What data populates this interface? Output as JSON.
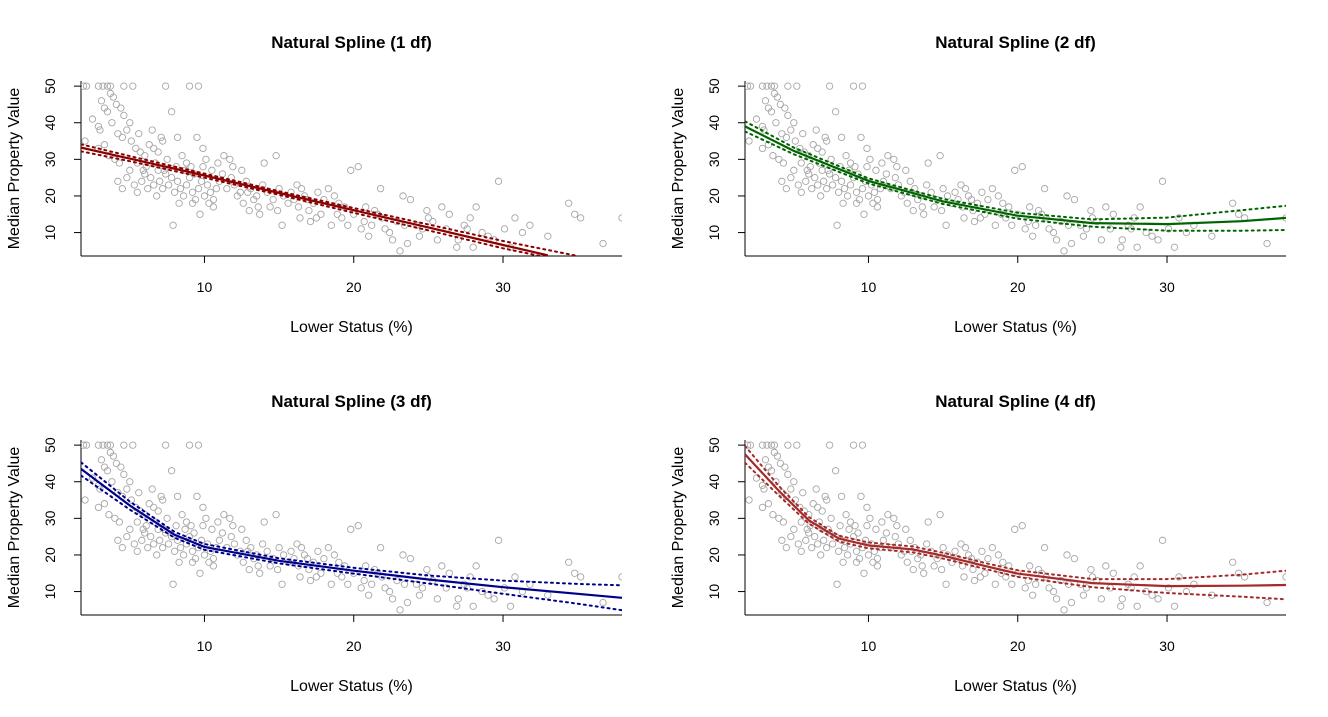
{
  "chart_data": [
    {
      "type": "scatter",
      "title": "Natural Spline (1 df)",
      "xlabel": "Lower Status (%)",
      "ylabel": "Median Property Value",
      "xlim": [
        1.73,
        37.97
      ],
      "ylim": [
        3.6,
        51.4
      ],
      "xticks": [
        10,
        20,
        30
      ],
      "yticks": [
        10,
        20,
        30,
        40,
        50
      ],
      "color": "#8b0000",
      "fit": [
        [
          1.73,
          33.2
        ],
        [
          5,
          30.2
        ],
        [
          10,
          25.6
        ],
        [
          15,
          20.8
        ],
        [
          20,
          16.1
        ],
        [
          25,
          11.4
        ],
        [
          30,
          6.6
        ],
        [
          33,
          3.8
        ]
      ],
      "upper": [
        [
          1.73,
          34.1
        ],
        [
          5,
          30.9
        ],
        [
          10,
          26.1
        ],
        [
          15,
          21.3
        ],
        [
          20,
          16.7
        ],
        [
          25,
          12.2
        ],
        [
          30,
          7.7
        ],
        [
          35,
          3.6
        ]
      ],
      "lower": [
        [
          1.73,
          32.2
        ],
        [
          5,
          29.5
        ],
        [
          10,
          25.0
        ],
        [
          15,
          20.3
        ],
        [
          20,
          15.4
        ],
        [
          25,
          10.6
        ],
        [
          30,
          5.7
        ],
        [
          32.5,
          3.6
        ]
      ]
    },
    {
      "type": "scatter",
      "title": "Natural Spline (2 df)",
      "xlabel": "Lower Status (%)",
      "ylabel": "Median Property Value",
      "xlim": [
        1.73,
        37.97
      ],
      "ylim": [
        3.6,
        51.4
      ],
      "xticks": [
        10,
        20,
        30
      ],
      "yticks": [
        10,
        20,
        30,
        40,
        50
      ],
      "color": "#006400",
      "fit": [
        [
          1.73,
          39.0
        ],
        [
          5,
          32.3
        ],
        [
          10,
          24.1
        ],
        [
          15,
          18.5
        ],
        [
          20,
          14.6
        ],
        [
          25,
          12.6
        ],
        [
          30,
          12.3
        ],
        [
          35,
          13.1
        ],
        [
          37.97,
          14.0
        ]
      ],
      "upper": [
        [
          1.73,
          40.4
        ],
        [
          5,
          33.2
        ],
        [
          10,
          24.8
        ],
        [
          15,
          19.2
        ],
        [
          20,
          15.4
        ],
        [
          25,
          13.6
        ],
        [
          30,
          14.1
        ],
        [
          35,
          16.1
        ],
        [
          37.97,
          17.3
        ]
      ],
      "lower": [
        [
          1.73,
          37.6
        ],
        [
          5,
          31.4
        ],
        [
          10,
          23.4
        ],
        [
          15,
          17.8
        ],
        [
          20,
          13.8
        ],
        [
          25,
          11.6
        ],
        [
          30,
          10.5
        ],
        [
          35,
          10.5
        ],
        [
          37.97,
          10.7
        ]
      ]
    },
    {
      "type": "scatter",
      "title": "Natural Spline (3 df)",
      "xlabel": "Lower Status (%)",
      "ylabel": "Median Property Value",
      "xlim": [
        1.73,
        37.97
      ],
      "ylim": [
        3.6,
        51.4
      ],
      "xticks": [
        10,
        20,
        30
      ],
      "yticks": [
        10,
        20,
        30,
        40,
        50
      ],
      "color": "#00008b",
      "fit": [
        [
          1.73,
          43.5
        ],
        [
          5,
          33.5
        ],
        [
          8,
          25.5
        ],
        [
          10,
          22.2
        ],
        [
          15,
          18.4
        ],
        [
          20,
          15.7
        ],
        [
          25,
          13.3
        ],
        [
          30,
          11.2
        ],
        [
          35,
          9.4
        ],
        [
          37.97,
          8.3
        ]
      ],
      "upper": [
        [
          1.73,
          45.3
        ],
        [
          5,
          34.6
        ],
        [
          8,
          26.3
        ],
        [
          10,
          23.0
        ],
        [
          15,
          19.1
        ],
        [
          20,
          16.5
        ],
        [
          25,
          14.4
        ],
        [
          30,
          13.0
        ],
        [
          35,
          12.1
        ],
        [
          37.97,
          11.7
        ]
      ],
      "lower": [
        [
          1.73,
          41.7
        ],
        [
          5,
          32.4
        ],
        [
          8,
          24.7
        ],
        [
          10,
          21.4
        ],
        [
          15,
          17.7
        ],
        [
          20,
          14.9
        ],
        [
          25,
          12.2
        ],
        [
          30,
          9.4
        ],
        [
          35,
          6.7
        ],
        [
          37.97,
          4.9
        ]
      ]
    },
    {
      "type": "scatter",
      "title": "Natural Spline (4 df)",
      "xlabel": "Lower Status (%)",
      "ylabel": "Median Property Value",
      "xlim": [
        1.73,
        37.97
      ],
      "ylim": [
        3.6,
        51.4
      ],
      "xticks": [
        10,
        20,
        30
      ],
      "yticks": [
        10,
        20,
        30,
        40,
        50
      ],
      "color": "#a52a2a",
      "fit": [
        [
          1.73,
          47.5
        ],
        [
          4,
          37.5
        ],
        [
          6,
          29.5
        ],
        [
          8,
          24.5
        ],
        [
          10,
          22.6
        ],
        [
          13,
          21.5
        ],
        [
          15,
          19.8
        ],
        [
          18,
          16.8
        ],
        [
          20,
          14.9
        ],
        [
          25,
          12.3
        ],
        [
          30,
          11.5
        ],
        [
          35,
          11.6
        ],
        [
          37.97,
          11.8
        ]
      ],
      "upper": [
        [
          1.73,
          49.8
        ],
        [
          4,
          38.8
        ],
        [
          6,
          30.4
        ],
        [
          8,
          25.3
        ],
        [
          10,
          23.4
        ],
        [
          13,
          22.3
        ],
        [
          15,
          20.6
        ],
        [
          18,
          17.6
        ],
        [
          20,
          15.8
        ],
        [
          25,
          13.4
        ],
        [
          30,
          13.4
        ],
        [
          35,
          14.6
        ],
        [
          37.97,
          15.7
        ]
      ],
      "lower": [
        [
          1.73,
          45.2
        ],
        [
          4,
          36.2
        ],
        [
          6,
          28.6
        ],
        [
          8,
          23.7
        ],
        [
          10,
          21.8
        ],
        [
          13,
          20.7
        ],
        [
          15,
          19.0
        ],
        [
          18,
          16.0
        ],
        [
          20,
          14.0
        ],
        [
          25,
          11.2
        ],
        [
          30,
          9.6
        ],
        [
          35,
          8.6
        ],
        [
          37.97,
          7.9
        ]
      ]
    }
  ],
  "points": [
    [
      1.9,
      50
    ],
    [
      2.1,
      50
    ],
    [
      2.9,
      50
    ],
    [
      3.2,
      50
    ],
    [
      3.5,
      50
    ],
    [
      3.7,
      50
    ],
    [
      4.6,
      50
    ],
    [
      5.2,
      50
    ],
    [
      7.4,
      50
    ],
    [
      9.0,
      50
    ],
    [
      9.6,
      50
    ],
    [
      2.0,
      35
    ],
    [
      2.5,
      41
    ],
    [
      2.9,
      39
    ],
    [
      3.1,
      46
    ],
    [
      3.3,
      44
    ],
    [
      3.5,
      43
    ],
    [
      3.7,
      48
    ],
    [
      3.9,
      47
    ],
    [
      4.1,
      45
    ],
    [
      4.4,
      44
    ],
    [
      4.6,
      42
    ],
    [
      5.0,
      40
    ],
    [
      2.9,
      33
    ],
    [
      3.3,
      34
    ],
    [
      3.6,
      31
    ],
    [
      4.0,
      30
    ],
    [
      4.2,
      37
    ],
    [
      4.5,
      36
    ],
    [
      4.8,
      38
    ],
    [
      5.1,
      35
    ],
    [
      5.4,
      33
    ],
    [
      5.7,
      32
    ],
    [
      6.0,
      31
    ],
    [
      6.3,
      34
    ],
    [
      6.6,
      33
    ],
    [
      6.9,
      32
    ],
    [
      7.2,
      35
    ],
    [
      7.5,
      30
    ],
    [
      7.8,
      43
    ],
    [
      8.2,
      36
    ],
    [
      8.5,
      31
    ],
    [
      8.8,
      29
    ],
    [
      9.1,
      28
    ],
    [
      9.5,
      36
    ],
    [
      9.9,
      33
    ],
    [
      4.2,
      24
    ],
    [
      4.5,
      22
    ],
    [
      4.8,
      25
    ],
    [
      5.0,
      27
    ],
    [
      5.3,
      23
    ],
    [
      5.5,
      21
    ],
    [
      5.8,
      24
    ],
    [
      6.0,
      26
    ],
    [
      6.2,
      22
    ],
    [
      6.4,
      25
    ],
    [
      6.6,
      23
    ],
    [
      6.8,
      20
    ],
    [
      7.0,
      24
    ],
    [
      7.2,
      22
    ],
    [
      7.4,
      26
    ],
    [
      7.6,
      23
    ],
    [
      7.8,
      25
    ],
    [
      8.0,
      21
    ],
    [
      8.2,
      24
    ],
    [
      8.4,
      22
    ],
    [
      8.6,
      20
    ],
    [
      8.8,
      23
    ],
    [
      9.0,
      25
    ],
    [
      9.2,
      21
    ],
    [
      9.4,
      19
    ],
    [
      9.6,
      22
    ],
    [
      9.8,
      24
    ],
    [
      10.0,
      20
    ],
    [
      10.2,
      23
    ],
    [
      10.4,
      21
    ],
    [
      10.6,
      19
    ],
    [
      10.8,
      22
    ],
    [
      11.0,
      24
    ],
    [
      5.5,
      29
    ],
    [
      6.1,
      28
    ],
    [
      6.7,
      29
    ],
    [
      7.3,
      27
    ],
    [
      8.1,
      28
    ],
    [
      8.7,
      27
    ],
    [
      9.3,
      26
    ],
    [
      9.9,
      28
    ],
    [
      10.5,
      27
    ],
    [
      11.2,
      26
    ],
    [
      11.8,
      25
    ],
    [
      7.9,
      12
    ],
    [
      8.3,
      18
    ],
    [
      9.7,
      15
    ],
    [
      10.6,
      17
    ],
    [
      11.3,
      31
    ],
    [
      11.7,
      30
    ],
    [
      12.2,
      20
    ],
    [
      12.6,
      18
    ],
    [
      12.9,
      21
    ],
    [
      13.3,
      19
    ],
    [
      13.6,
      17
    ],
    [
      11.5,
      22
    ],
    [
      12.0,
      23
    ],
    [
      12.4,
      21
    ],
    [
      12.8,
      24
    ],
    [
      13.1,
      22
    ],
    [
      13.5,
      20
    ],
    [
      13.9,
      23
    ],
    [
      14.2,
      21
    ],
    [
      14.6,
      19
    ],
    [
      15.0,
      22
    ],
    [
      15.3,
      20
    ],
    [
      13.0,
      16
    ],
    [
      13.7,
      15
    ],
    [
      14.0,
      29
    ],
    [
      14.4,
      17
    ],
    [
      14.8,
      31
    ],
    [
      15.2,
      12
    ],
    [
      15.6,
      18
    ],
    [
      16.0,
      19
    ],
    [
      16.3,
      17
    ],
    [
      16.7,
      20
    ],
    [
      17.0,
      16
    ],
    [
      15.8,
      21
    ],
    [
      16.2,
      23
    ],
    [
      16.5,
      22
    ],
    [
      16.9,
      19
    ],
    [
      17.3,
      18
    ],
    [
      17.6,
      21
    ],
    [
      18.0,
      19
    ],
    [
      18.3,
      22
    ],
    [
      18.7,
      20
    ],
    [
      19.0,
      18
    ],
    [
      19.4,
      17
    ],
    [
      16.4,
      14
    ],
    [
      17.1,
      13
    ],
    [
      17.8,
      15
    ],
    [
      18.5,
      12
    ],
    [
      19.2,
      14
    ],
    [
      19.8,
      27
    ],
    [
      20.3,
      28
    ],
    [
      20.7,
      13
    ],
    [
      21.0,
      9
    ],
    [
      21.4,
      16
    ],
    [
      21.8,
      22
    ],
    [
      20.0,
      15
    ],
    [
      20.5,
      11
    ],
    [
      21.2,
      12
    ],
    [
      21.9,
      14
    ],
    [
      22.4,
      10
    ],
    [
      22.9,
      13
    ],
    [
      23.3,
      20
    ],
    [
      23.8,
      19
    ],
    [
      24.2,
      12
    ],
    [
      24.6,
      11
    ],
    [
      25.0,
      14
    ],
    [
      22.6,
      8
    ],
    [
      23.1,
      5
    ],
    [
      23.6,
      7
    ],
    [
      24.4,
      9
    ],
    [
      25.3,
      13
    ],
    [
      25.9,
      17
    ],
    [
      26.4,
      15
    ],
    [
      26.9,
      6
    ],
    [
      27.4,
      12
    ],
    [
      27.8,
      14
    ],
    [
      28.2,
      17
    ],
    [
      28.6,
      10
    ],
    [
      29.0,
      9
    ],
    [
      29.4,
      8
    ],
    [
      29.7,
      24
    ],
    [
      30.1,
      11
    ],
    [
      30.5,
      6
    ],
    [
      30.8,
      14
    ],
    [
      31.3,
      10
    ],
    [
      31.8,
      12
    ],
    [
      33.0,
      9
    ],
    [
      34.4,
      18
    ],
    [
      34.8,
      15
    ],
    [
      35.2,
      14
    ],
    [
      36.7,
      7
    ],
    [
      37.97,
      14
    ],
    [
      27.0,
      8
    ],
    [
      28.0,
      6
    ],
    [
      26.2,
      11
    ],
    [
      25.6,
      8
    ],
    [
      24.9,
      16
    ],
    [
      27.6,
      11
    ],
    [
      5.6,
      37
    ],
    [
      6.5,
      38
    ],
    [
      7.1,
      36
    ],
    [
      3.0,
      38
    ],
    [
      3.8,
      40
    ],
    [
      4.3,
      29
    ],
    [
      5.9,
      27
    ],
    [
      6.9,
      27
    ],
    [
      14.9,
      16
    ],
    [
      17.5,
      14
    ],
    [
      18.9,
      15
    ],
    [
      19.6,
      12
    ],
    [
      20.8,
      17
    ],
    [
      21.6,
      15
    ],
    [
      22.1,
      11
    ],
    [
      23.4,
      12
    ],
    [
      10.1,
      30
    ],
    [
      10.9,
      29
    ],
    [
      11.9,
      28
    ],
    [
      12.5,
      27
    ],
    [
      9.2,
      18
    ],
    [
      10.3,
      18
    ]
  ]
}
